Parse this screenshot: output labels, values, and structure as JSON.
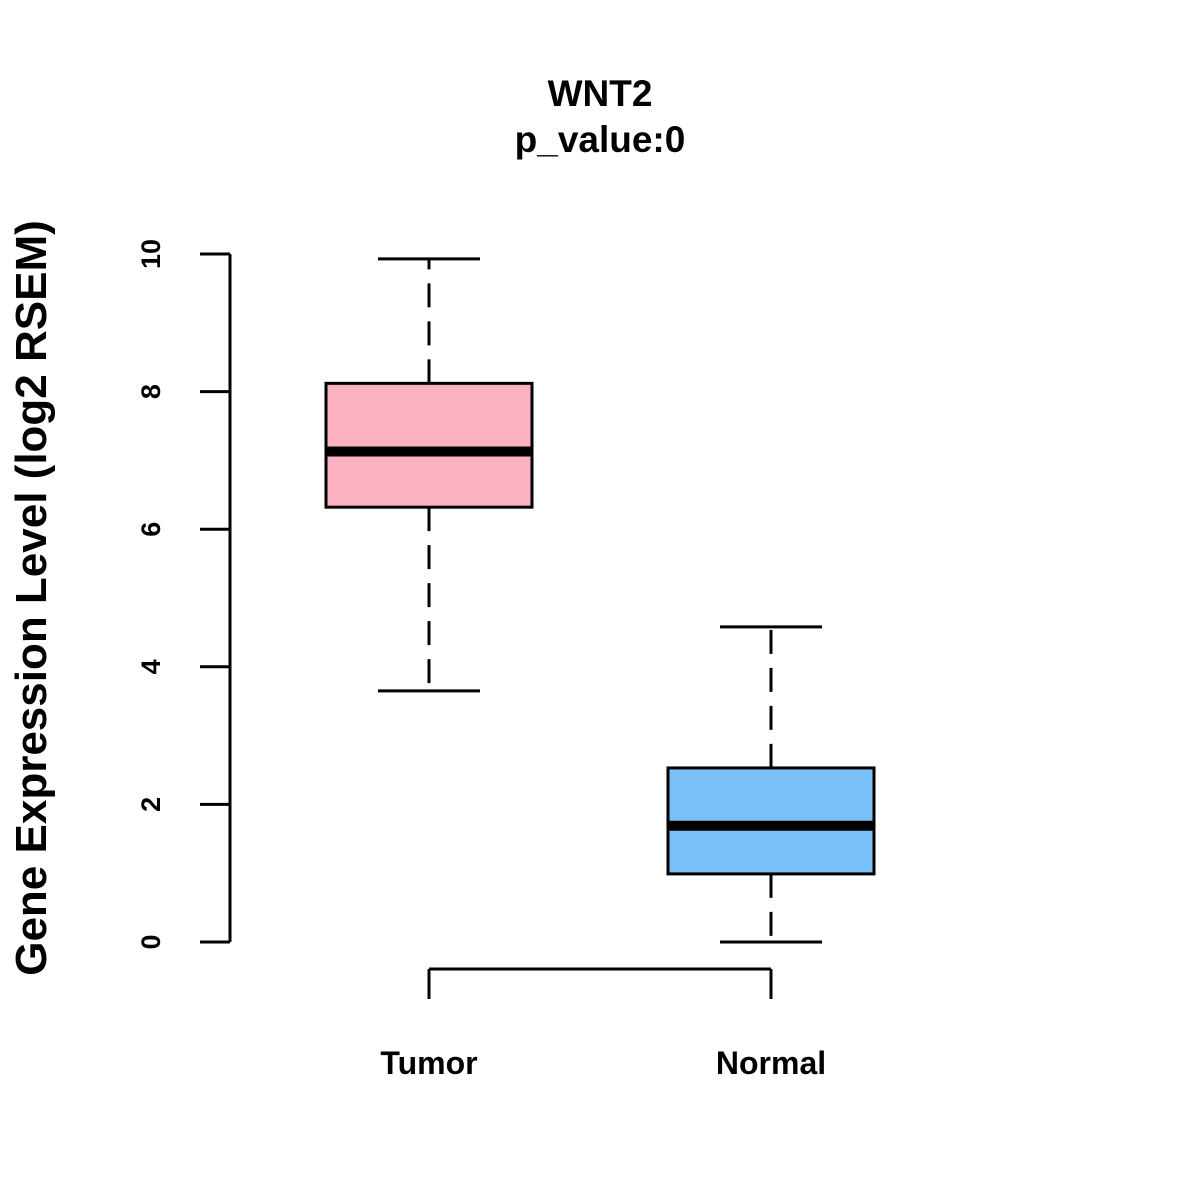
{
  "chart_data": {
    "type": "boxplot",
    "title": "WNT2",
    "subtitle": "p_value:0",
    "xlabel": "",
    "ylabel": "Gene Expression Level (log2 RSEM)",
    "ylim": [
      0,
      10
    ],
    "yticks": [
      0,
      2,
      4,
      6,
      8,
      10
    ],
    "categories": [
      "Tumor",
      "Normal"
    ],
    "series": [
      {
        "name": "Tumor",
        "color": "#FBB1C2",
        "min": 3.65,
        "q1": 6.32,
        "median": 7.13,
        "q3": 8.12,
        "max": 9.93
      },
      {
        "name": "Normal",
        "color": "#79C1F8",
        "min": 0.0,
        "q1": 0.99,
        "median": 1.69,
        "q3": 2.53,
        "max": 4.58
      }
    ],
    "comparison_bracket": [
      "Tumor",
      "Normal"
    ],
    "grid": false
  }
}
